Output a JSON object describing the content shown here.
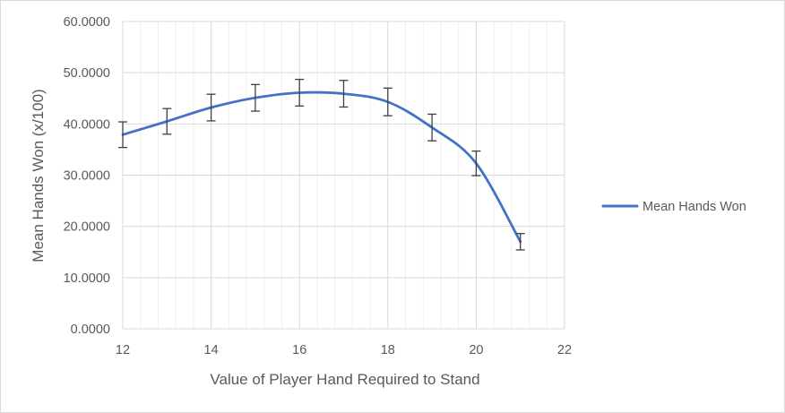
{
  "chart_data": {
    "type": "line",
    "title": "",
    "xlabel": "Value of Player Hand Required to Stand",
    "ylabel": "Mean Hands Won  (x/100)",
    "xlim": [
      12,
      22
    ],
    "ylim": [
      0,
      60
    ],
    "x_ticks": [
      12,
      14,
      16,
      18,
      20,
      22
    ],
    "x_tick_labels": [
      "12",
      "14",
      "16",
      "18",
      "20",
      "22"
    ],
    "y_ticks": [
      0,
      10,
      20,
      30,
      40,
      50,
      60
    ],
    "y_tick_labels": [
      "0.0000",
      "10.0000",
      "20.0000",
      "30.0000",
      "40.0000",
      "50.0000",
      "60.0000"
    ],
    "grid": {
      "major": true,
      "minor_vertical": true
    },
    "legend_position": "right",
    "series": [
      {
        "name": "Mean Hands Won",
        "color": "#4472c4",
        "smoothed": true,
        "x": [
          12,
          13,
          14,
          15,
          16,
          17,
          18,
          19,
          20,
          21
        ],
        "values": [
          37.9,
          40.5,
          43.2,
          45.1,
          46.1,
          45.9,
          44.3,
          39.3,
          32.3,
          17.0
        ],
        "error": [
          2.5,
          2.5,
          2.6,
          2.6,
          2.6,
          2.6,
          2.7,
          2.6,
          2.4,
          1.6
        ]
      }
    ]
  }
}
